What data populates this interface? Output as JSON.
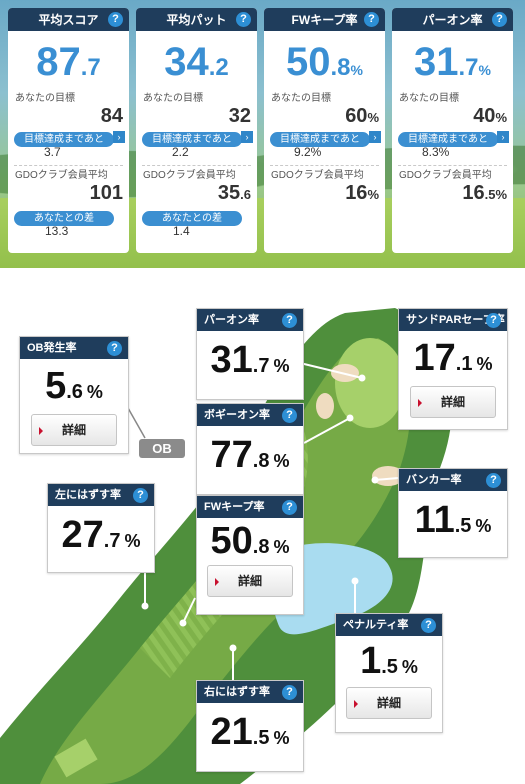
{
  "stats": [
    {
      "title": "平均スコア",
      "value_int": "87",
      "value_dec": ".7",
      "unit": "",
      "target_label": "あなたの目標",
      "target": "84",
      "target_unit": "",
      "pill": "目標達成まであと",
      "remaining": "3.7",
      "gdo_label": "GDOクラブ会員平均",
      "gdo_int": "101",
      "gdo_dec": "",
      "gdo_unit": "",
      "extra_pill": "あなたとの差",
      "extra_value": "13.3"
    },
    {
      "title": "平均パット",
      "value_int": "34",
      "value_dec": ".2",
      "unit": "",
      "target_label": "あなたの目標",
      "target": "32",
      "target_unit": "",
      "pill": "目標達成まであと",
      "remaining": "2.2",
      "gdo_label": "GDOクラブ会員平均",
      "gdo_int": "35",
      "gdo_dec": ".6",
      "gdo_unit": "",
      "extra_pill": "あなたとの差",
      "extra_value": "1.4"
    },
    {
      "title": "FWキープ率",
      "value_int": "50",
      "value_dec": ".8",
      "unit": "%",
      "target_label": "あなたの目標",
      "target": "60",
      "target_unit": "%",
      "pill": "目標達成まであと",
      "remaining": "9.2%",
      "gdo_label": "GDOクラブ会員平均",
      "gdo_int": "16",
      "gdo_dec": "",
      "gdo_unit": "%",
      "extra_pill": "",
      "extra_value": ""
    },
    {
      "title": "パーオン率",
      "value_int": "31",
      "value_dec": ".7",
      "unit": "%",
      "target_label": "あなたの目標",
      "target": "40",
      "target_unit": "%",
      "pill": "目標達成まであと",
      "remaining": "8.3%",
      "gdo_label": "GDOクラブ会員平均",
      "gdo_int": "16",
      "gdo_dec": ".5",
      "gdo_unit": "%",
      "extra_pill": "",
      "extra_value": ""
    }
  ],
  "course": {
    "ob": {
      "title": "OB発生率",
      "int": "5",
      "dec": ".6",
      "unit": "%",
      "detail": "詳細",
      "tag": "OB"
    },
    "paron": {
      "title": "パーオン率",
      "int": "31",
      "dec": ".7",
      "unit": "%"
    },
    "sand": {
      "title": "サンドPARセーブ率",
      "int": "17",
      "dec": ".1",
      "unit": "%",
      "detail": "詳細"
    },
    "bogey": {
      "title": "ボギーオン率",
      "int": "77",
      "dec": ".8",
      "unit": "%"
    },
    "left": {
      "title": "左にはずす率",
      "int": "27",
      "dec": ".7",
      "unit": "%"
    },
    "bunker": {
      "title": "バンカー率",
      "int": "11",
      "dec": ".5",
      "unit": "%"
    },
    "fw": {
      "title": "FWキープ率",
      "int": "50",
      "dec": ".8",
      "unit": "%",
      "detail": "詳細"
    },
    "penalty": {
      "title": "ペナルティ率",
      "int": "1",
      "dec": ".5",
      "unit": "%",
      "detail": "詳細"
    },
    "right": {
      "title": "右にはずす率",
      "int": "21",
      "dec": ".5",
      "unit": "%"
    }
  },
  "help_icon": "?",
  "arrow_icon": "›",
  "colors": {
    "header": "#1f3d5c",
    "accent": "#3a8fd3",
    "help": "#2d8fd5",
    "detail_marker": "#c8102e"
  }
}
